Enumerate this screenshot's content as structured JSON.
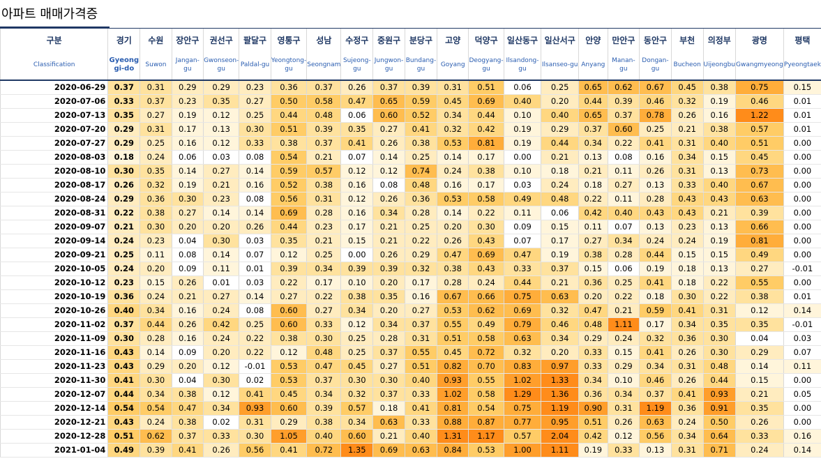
{
  "sheet": {
    "title": "아파트 매매가격증"
  },
  "table": {
    "headers": [
      {
        "ko": "구분",
        "en": "Classification"
      },
      {
        "ko": "경기",
        "en": "Gyeong gi-do"
      },
      {
        "ko": "수원",
        "en": "Suwon"
      },
      {
        "ko": "장안구",
        "en": "Jangan-gu"
      },
      {
        "ko": "권선구",
        "en": "Gwonseon-gu"
      },
      {
        "ko": "팔달구",
        "en": "Paldal-gu"
      },
      {
        "ko": "영통구",
        "en": "Yeongtong-gu"
      },
      {
        "ko": "성남",
        "en": "Seongnam"
      },
      {
        "ko": "수정구",
        "en": "Sujeong-gu"
      },
      {
        "ko": "중원구",
        "en": "Jungwon-gu"
      },
      {
        "ko": "분당구",
        "en": "Bundang-gu"
      },
      {
        "ko": "고양",
        "en": "Goyang"
      },
      {
        "ko": "덕양구",
        "en": "Deogyang-gu"
      },
      {
        "ko": "일산동구",
        "en": "Ilsandong-gu"
      },
      {
        "ko": "일산서구",
        "en": "Ilsanseo-gu"
      },
      {
        "ko": "안양",
        "en": "Anyang"
      },
      {
        "ko": "만안구",
        "en": "Manan-gu"
      },
      {
        "ko": "동안구",
        "en": "Dongan-gu"
      },
      {
        "ko": "부천",
        "en": "Bucheon"
      },
      {
        "ko": "의정부",
        "en": "Uijeongbu"
      },
      {
        "ko": "광명",
        "en": "Gwangmyeong"
      },
      {
        "ko": "평택",
        "en": "Pyeongtaek"
      }
    ],
    "rows": [
      {
        "date": "2020-06-29",
        "values": [
          "0.37",
          "0.31",
          "0.29",
          "0.29",
          "0.23",
          "0.36",
          "0.37",
          "0.26",
          "0.37",
          "0.39",
          "0.31",
          "0.51",
          "0.06",
          "0.25",
          "0.65",
          "0.62",
          "0.67",
          "0.45",
          "0.38",
          "0.75",
          "0.15"
        ]
      },
      {
        "date": "2020-07-06",
        "values": [
          "0.33",
          "0.37",
          "0.23",
          "0.35",
          "0.27",
          "0.50",
          "0.58",
          "0.47",
          "0.65",
          "0.59",
          "0.45",
          "0.69",
          "0.40",
          "0.20",
          "0.44",
          "0.39",
          "0.46",
          "0.32",
          "0.19",
          "0.46",
          "0.01"
        ]
      },
      {
        "date": "2020-07-13",
        "values": [
          "0.35",
          "0.27",
          "0.19",
          "0.12",
          "0.25",
          "0.44",
          "0.48",
          "0.06",
          "0.60",
          "0.52",
          "0.34",
          "0.44",
          "0.10",
          "0.40",
          "0.65",
          "0.37",
          "0.78",
          "0.26",
          "0.16",
          "1.22",
          "0.01"
        ]
      },
      {
        "date": "2020-07-20",
        "values": [
          "0.29",
          "0.31",
          "0.17",
          "0.13",
          "0.30",
          "0.51",
          "0.39",
          "0.35",
          "0.27",
          "0.41",
          "0.32",
          "0.42",
          "0.19",
          "0.29",
          "0.37",
          "0.60",
          "0.25",
          "0.21",
          "0.38",
          "0.57",
          "0.01"
        ]
      },
      {
        "date": "2020-07-27",
        "values": [
          "0.29",
          "0.25",
          "0.16",
          "0.12",
          "0.33",
          "0.38",
          "0.37",
          "0.41",
          "0.26",
          "0.38",
          "0.53",
          "0.81",
          "0.19",
          "0.44",
          "0.34",
          "0.22",
          "0.41",
          "0.31",
          "0.40",
          "0.51",
          "0.00"
        ]
      },
      {
        "date": "2020-08-03",
        "values": [
          "0.18",
          "0.24",
          "0.06",
          "0.03",
          "0.08",
          "0.54",
          "0.21",
          "0.07",
          "0.14",
          "0.25",
          "0.14",
          "0.17",
          "0.00",
          "0.21",
          "0.13",
          "0.08",
          "0.16",
          "0.34",
          "0.15",
          "0.45",
          "0.00"
        ]
      },
      {
        "date": "2020-08-10",
        "values": [
          "0.30",
          "0.35",
          "0.14",
          "0.27",
          "0.14",
          "0.59",
          "0.57",
          "0.12",
          "0.12",
          "0.74",
          "0.24",
          "0.38",
          "0.10",
          "0.18",
          "0.21",
          "0.11",
          "0.26",
          "0.31",
          "0.13",
          "0.73",
          "0.00"
        ]
      },
      {
        "date": "2020-08-17",
        "values": [
          "0.26",
          "0.32",
          "0.19",
          "0.21",
          "0.16",
          "0.52",
          "0.38",
          "0.16",
          "0.08",
          "0.48",
          "0.16",
          "0.17",
          "0.03",
          "0.24",
          "0.18",
          "0.27",
          "0.13",
          "0.33",
          "0.40",
          "0.67",
          "0.00"
        ]
      },
      {
        "date": "2020-08-24",
        "values": [
          "0.29",
          "0.36",
          "0.30",
          "0.23",
          "0.08",
          "0.56",
          "0.31",
          "0.12",
          "0.26",
          "0.36",
          "0.53",
          "0.58",
          "0.49",
          "0.48",
          "0.22",
          "0.11",
          "0.28",
          "0.43",
          "0.43",
          "0.63",
          "0.00"
        ]
      },
      {
        "date": "2020-08-31",
        "values": [
          "0.22",
          "0.38",
          "0.27",
          "0.14",
          "0.14",
          "0.69",
          "0.28",
          "0.16",
          "0.34",
          "0.28",
          "0.14",
          "0.22",
          "0.11",
          "0.06",
          "0.42",
          "0.40",
          "0.43",
          "0.43",
          "0.21",
          "0.39",
          "0.00"
        ]
      },
      {
        "date": "2020-09-07",
        "values": [
          "0.21",
          "0.30",
          "0.20",
          "0.20",
          "0.26",
          "0.44",
          "0.23",
          "0.17",
          "0.21",
          "0.25",
          "0.20",
          "0.30",
          "0.09",
          "0.15",
          "0.11",
          "0.07",
          "0.13",
          "0.23",
          "0.13",
          "0.66",
          "0.00"
        ]
      },
      {
        "date": "2020-09-14",
        "values": [
          "0.24",
          "0.23",
          "0.04",
          "0.30",
          "0.03",
          "0.35",
          "0.21",
          "0.15",
          "0.21",
          "0.22",
          "0.26",
          "0.43",
          "0.07",
          "0.17",
          "0.27",
          "0.34",
          "0.24",
          "0.24",
          "0.19",
          "0.81",
          "0.00"
        ]
      },
      {
        "date": "2020-09-21",
        "values": [
          "0.25",
          "0.11",
          "0.08",
          "0.14",
          "0.07",
          "0.12",
          "0.25",
          "0.00",
          "0.26",
          "0.29",
          "0.47",
          "0.69",
          "0.47",
          "0.19",
          "0.38",
          "0.28",
          "0.44",
          "0.15",
          "0.15",
          "0.49",
          "0.00"
        ]
      },
      {
        "date": "2020-10-05",
        "values": [
          "0.24",
          "0.20",
          "0.09",
          "0.11",
          "0.01",
          "0.39",
          "0.34",
          "0.39",
          "0.39",
          "0.32",
          "0.38",
          "0.43",
          "0.33",
          "0.37",
          "0.15",
          "0.06",
          "0.19",
          "0.18",
          "0.13",
          "0.27",
          "-0.01"
        ]
      },
      {
        "date": "2020-10-12",
        "values": [
          "0.23",
          "0.15",
          "0.26",
          "0.01",
          "0.03",
          "0.22",
          "0.17",
          "0.10",
          "0.20",
          "0.17",
          "0.28",
          "0.24",
          "0.44",
          "0.21",
          "0.36",
          "0.25",
          "0.41",
          "0.18",
          "0.22",
          "0.55",
          "0.00"
        ]
      },
      {
        "date": "2020-10-19",
        "values": [
          "0.36",
          "0.24",
          "0.21",
          "0.27",
          "0.14",
          "0.27",
          "0.22",
          "0.38",
          "0.35",
          "0.16",
          "0.67",
          "0.66",
          "0.75",
          "0.63",
          "0.20",
          "0.22",
          "0.18",
          "0.30",
          "0.22",
          "0.38",
          "0.01"
        ]
      },
      {
        "date": "2020-10-26",
        "values": [
          "0.40",
          "0.34",
          "0.16",
          "0.24",
          "0.08",
          "0.60",
          "0.27",
          "0.34",
          "0.20",
          "0.27",
          "0.53",
          "0.62",
          "0.69",
          "0.32",
          "0.47",
          "0.21",
          "0.59",
          "0.41",
          "0.31",
          "0.12",
          "0.14"
        ]
      },
      {
        "date": "2020-11-02",
        "values": [
          "0.37",
          "0.44",
          "0.26",
          "0.42",
          "0.25",
          "0.60",
          "0.33",
          "0.12",
          "0.34",
          "0.37",
          "0.55",
          "0.49",
          "0.79",
          "0.46",
          "0.48",
          "1.11",
          "0.17",
          "0.34",
          "0.35",
          "0.35",
          "-0.01"
        ]
      },
      {
        "date": "2020-11-09",
        "values": [
          "0.30",
          "0.28",
          "0.16",
          "0.24",
          "0.22",
          "0.38",
          "0.30",
          "0.25",
          "0.28",
          "0.31",
          "0.51",
          "0.58",
          "0.63",
          "0.34",
          "0.29",
          "0.24",
          "0.32",
          "0.36",
          "0.30",
          "0.04",
          "0.03"
        ]
      },
      {
        "date": "2020-11-16",
        "values": [
          "0.43",
          "0.14",
          "0.09",
          "0.20",
          "0.22",
          "0.12",
          "0.48",
          "0.25",
          "0.37",
          "0.55",
          "0.45",
          "0.72",
          "0.32",
          "0.20",
          "0.33",
          "0.15",
          "0.41",
          "0.26",
          "0.30",
          "0.29",
          "0.07"
        ]
      },
      {
        "date": "2020-11-23",
        "values": [
          "0.43",
          "0.29",
          "0.20",
          "0.12",
          "-0.01",
          "0.53",
          "0.47",
          "0.45",
          "0.27",
          "0.51",
          "0.82",
          "0.70",
          "0.83",
          "0.97",
          "0.33",
          "0.29",
          "0.34",
          "0.31",
          "0.48",
          "0.14",
          "0.11"
        ]
      },
      {
        "date": "2020-11-30",
        "values": [
          "0.41",
          "0.30",
          "0.04",
          "0.30",
          "0.02",
          "0.53",
          "0.37",
          "0.30",
          "0.30",
          "0.40",
          "0.93",
          "0.55",
          "1.02",
          "1.33",
          "0.34",
          "0.10",
          "0.46",
          "0.26",
          "0.44",
          "0.15",
          "0.00"
        ]
      },
      {
        "date": "2020-12-07",
        "values": [
          "0.44",
          "0.34",
          "0.38",
          "0.12",
          "0.41",
          "0.45",
          "0.34",
          "0.32",
          "0.37",
          "0.33",
          "1.02",
          "0.58",
          "1.29",
          "1.36",
          "0.36",
          "0.34",
          "0.37",
          "0.41",
          "0.93",
          "0.21",
          "0.05"
        ]
      },
      {
        "date": "2020-12-14",
        "values": [
          "0.54",
          "0.54",
          "0.47",
          "0.34",
          "0.93",
          "0.60",
          "0.39",
          "0.57",
          "0.18",
          "0.41",
          "0.81",
          "0.54",
          "0.75",
          "1.19",
          "0.90",
          "0.31",
          "1.19",
          "0.36",
          "0.91",
          "0.35",
          "0.00"
        ]
      },
      {
        "date": "2020-12-21",
        "values": [
          "0.43",
          "0.24",
          "0.38",
          "0.02",
          "0.31",
          "0.29",
          "0.38",
          "0.34",
          "0.63",
          "0.33",
          "0.88",
          "0.87",
          "0.77",
          "0.95",
          "0.51",
          "0.26",
          "0.63",
          "0.24",
          "0.50",
          "0.26",
          "0.00"
        ]
      },
      {
        "date": "2020-12-28",
        "values": [
          "0.51",
          "0.62",
          "0.37",
          "0.33",
          "0.30",
          "1.05",
          "0.40",
          "0.60",
          "0.21",
          "0.40",
          "1.31",
          "1.17",
          "0.57",
          "2.04",
          "0.42",
          "0.12",
          "0.56",
          "0.34",
          "0.64",
          "0.33",
          "0.16"
        ]
      },
      {
        "date": "2021-01-04",
        "values": [
          "0.49",
          "0.39",
          "0.41",
          "0.26",
          "0.56",
          "0.41",
          "0.72",
          "1.35",
          "0.69",
          "0.63",
          "0.84",
          "0.53",
          "1.00",
          "1.11",
          "0.19",
          "0.33",
          "0.13",
          "0.31",
          "0.71",
          "0.24",
          "0.14"
        ]
      }
    ]
  }
}
